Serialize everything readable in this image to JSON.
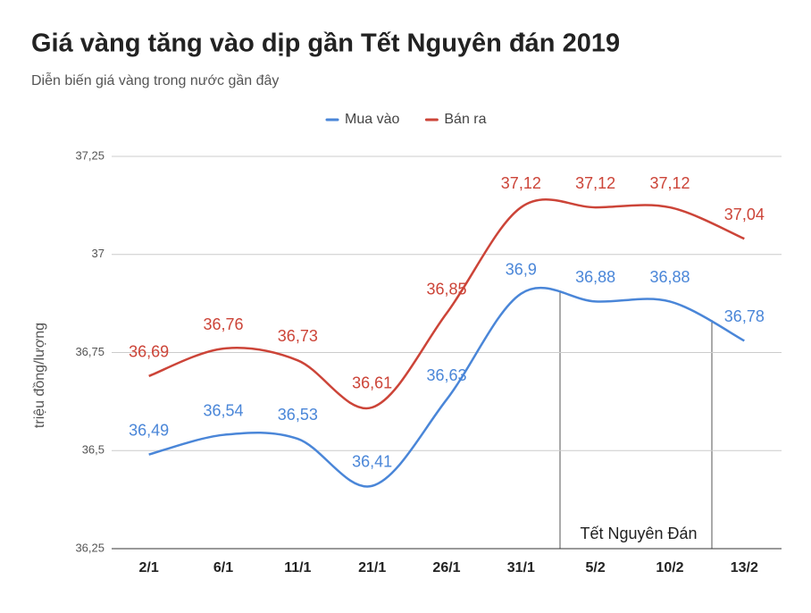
{
  "chart_data": {
    "type": "line",
    "title": "Giá vàng tăng vào dịp gần Tết Nguyên đán 2019",
    "subtitle": "Diễn biến giá vàng trong nước gần đây",
    "y_label": "triệu đồng/lượng",
    "annotation": "Tết Nguyên Đán",
    "categories": [
      "2/1",
      "6/1",
      "11/1",
      "21/1",
      "26/1",
      "31/1",
      "5/2",
      "10/2",
      "13/2"
    ],
    "series": [
      {
        "name": "Mua vào",
        "color": "#4a86d8",
        "values": [
          36.49,
          36.54,
          36.53,
          36.41,
          36.63,
          36.9,
          36.88,
          36.88,
          36.78
        ],
        "value_labels": [
          "36,49",
          "36,54",
          "36,53",
          "36,41",
          "36,63",
          "36,9",
          "36,88",
          "36,88",
          "36,78"
        ]
      },
      {
        "name": "Bán ra",
        "color": "#cc4438",
        "values": [
          36.69,
          36.76,
          36.73,
          36.61,
          36.85,
          37.12,
          37.12,
          37.12,
          37.04
        ],
        "value_labels": [
          "36,69",
          "36,76",
          "36,73",
          "36,61",
          "36,85",
          "37,12",
          "37,12",
          "37,12",
          "37,04"
        ]
      }
    ],
    "ylim": [
      36.25,
      37.25
    ],
    "yticks": [
      {
        "value": 36.25,
        "label": "36,25"
      },
      {
        "value": 36.5,
        "label": "36,5"
      },
      {
        "value": 36.75,
        "label": "36,75"
      },
      37,
      {
        "value": 37.25,
        "label": "37,25"
      }
    ],
    "grid": true,
    "legend": "top"
  }
}
